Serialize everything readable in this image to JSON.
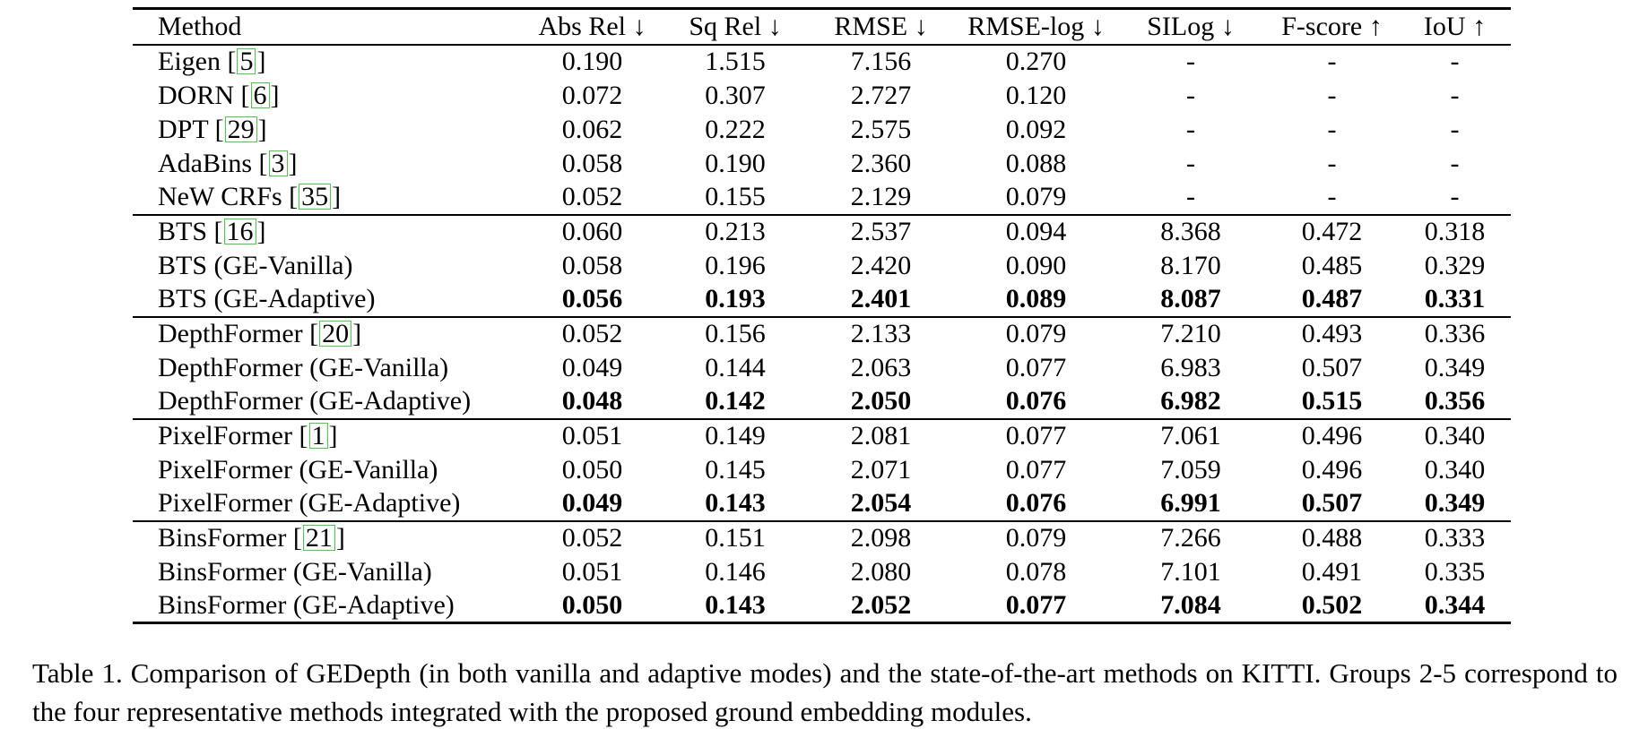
{
  "colors": {
    "background": "#ffffff",
    "text": "#000000",
    "citation_box_border": "#44cf44"
  },
  "citation_brackets": {
    "open": "[",
    "close": "]"
  },
  "table": {
    "columns": [
      "Method",
      "Abs Rel ↓",
      "Sq Rel ↓",
      "RMSE ↓",
      "RMSE-log ↓",
      "SILog ↓",
      "F-score ↑",
      "IoU ↑"
    ],
    "groups": [
      {
        "rows": [
          {
            "method": "Eigen",
            "cite": "5",
            "bold": false,
            "values": [
              "0.190",
              "1.515",
              "7.156",
              "0.270",
              "-",
              "-",
              "-"
            ]
          },
          {
            "method": "DORN",
            "cite": "6",
            "bold": false,
            "values": [
              "0.072",
              "0.307",
              "2.727",
              "0.120",
              "-",
              "-",
              "-"
            ]
          },
          {
            "method": "DPT",
            "cite": "29",
            "bold": false,
            "values": [
              "0.062",
              "0.222",
              "2.575",
              "0.092",
              "-",
              "-",
              "-"
            ]
          },
          {
            "method": "AdaBins",
            "cite": "3",
            "bold": false,
            "values": [
              "0.058",
              "0.190",
              "2.360",
              "0.088",
              "-",
              "-",
              "-"
            ]
          },
          {
            "method": "NeW CRFs",
            "cite": "35",
            "bold": false,
            "values": [
              "0.052",
              "0.155",
              "2.129",
              "0.079",
              "-",
              "-",
              "-"
            ]
          }
        ]
      },
      {
        "rows": [
          {
            "method": "BTS",
            "cite": "16",
            "bold": false,
            "values": [
              "0.060",
              "0.213",
              "2.537",
              "0.094",
              "8.368",
              "0.472",
              "0.318"
            ]
          },
          {
            "method": "BTS (GE-Vanilla)",
            "cite": null,
            "bold": false,
            "values": [
              "0.058",
              "0.196",
              "2.420",
              "0.090",
              "8.170",
              "0.485",
              "0.329"
            ]
          },
          {
            "method": "BTS (GE-Adaptive)",
            "cite": null,
            "bold": true,
            "values": [
              "0.056",
              "0.193",
              "2.401",
              "0.089",
              "8.087",
              "0.487",
              "0.331"
            ]
          }
        ]
      },
      {
        "rows": [
          {
            "method": "DepthFormer",
            "cite": "20",
            "bold": false,
            "values": [
              "0.052",
              "0.156",
              "2.133",
              "0.079",
              "7.210",
              "0.493",
              "0.336"
            ]
          },
          {
            "method": "DepthFormer (GE-Vanilla)",
            "cite": null,
            "bold": false,
            "values": [
              "0.049",
              "0.144",
              "2.063",
              "0.077",
              "6.983",
              "0.507",
              "0.349"
            ]
          },
          {
            "method": "DepthFormer (GE-Adaptive)",
            "cite": null,
            "bold": true,
            "values": [
              "0.048",
              "0.142",
              "2.050",
              "0.076",
              "6.982",
              "0.515",
              "0.356"
            ]
          }
        ]
      },
      {
        "rows": [
          {
            "method": "PixelFormer",
            "cite": "1",
            "bold": false,
            "values": [
              "0.051",
              "0.149",
              "2.081",
              "0.077",
              "7.061",
              "0.496",
              "0.340"
            ]
          },
          {
            "method": "PixelFormer (GE-Vanilla)",
            "cite": null,
            "bold": false,
            "values": [
              "0.050",
              "0.145",
              "2.071",
              "0.077",
              "7.059",
              "0.496",
              "0.340"
            ]
          },
          {
            "method": "PixelFormer (GE-Adaptive)",
            "cite": null,
            "bold": true,
            "values": [
              "0.049",
              "0.143",
              "2.054",
              "0.076",
              "6.991",
              "0.507",
              "0.349"
            ]
          }
        ]
      },
      {
        "rows": [
          {
            "method": "BinsFormer",
            "cite": "21",
            "bold": false,
            "values": [
              "0.052",
              "0.151",
              "2.098",
              "0.079",
              "7.266",
              "0.488",
              "0.333"
            ]
          },
          {
            "method": "BinsFormer (GE-Vanilla)",
            "cite": null,
            "bold": false,
            "values": [
              "0.051",
              "0.146",
              "2.080",
              "0.078",
              "7.101",
              "0.491",
              "0.335"
            ]
          },
          {
            "method": "BinsFormer (GE-Adaptive)",
            "cite": null,
            "bold": true,
            "values": [
              "0.050",
              "0.143",
              "2.052",
              "0.077",
              "7.084",
              "0.502",
              "0.344"
            ]
          }
        ]
      }
    ]
  },
  "caption": "Table 1. Comparison of GEDepth (in both vanilla and adaptive modes) and the state-of-the-art methods on KITTI. Groups 2-5 correspond to the four representative methods integrated with the proposed ground embedding modules."
}
